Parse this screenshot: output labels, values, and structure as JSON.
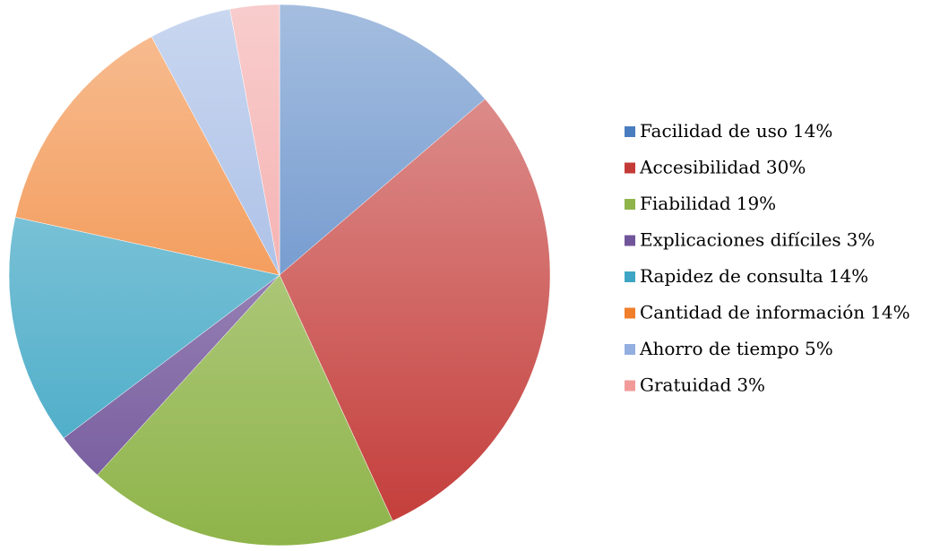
{
  "chart_data": {
    "type": "pie",
    "categories": [
      "Facilidad de uso",
      "Accesibilidad",
      "Fiabilidad",
      "Explicaciones difíciles",
      "Rapidez de consulta",
      "Cantidad de información",
      "Ahorro de tiempo",
      "Gratuidad"
    ],
    "values": [
      14,
      30,
      19,
      3,
      14,
      14,
      5,
      3
    ],
    "value_labels": [
      "14%",
      "30%",
      "19%",
      "3%",
      "14%",
      "14%",
      "5%",
      "3%"
    ],
    "colors": [
      "#4a7cc0",
      "#c33a37",
      "#8fb44a",
      "#71559a",
      "#3ea6c4",
      "#f07e2a",
      "#93aee0",
      "#f29a9a"
    ],
    "legend": "right"
  }
}
